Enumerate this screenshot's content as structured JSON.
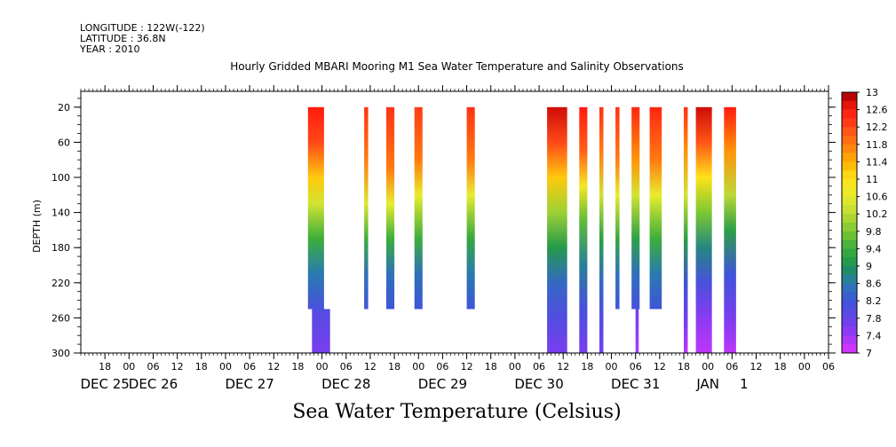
{
  "header": {
    "longitude": "LONGITUDE : 122W(-122)",
    "latitude": "LATITUDE : 36.8N",
    "year": "YEAR : 2010"
  },
  "chart_data": {
    "type": "heatmap",
    "title": "Hourly Gridded MBARI Mooring M1 Sea Water Temperature and Salinity Observations",
    "variable_label": "Sea Water Temperature (Celsius)",
    "ylabel": "DEPTH (m)",
    "ylim": [
      300,
      0
    ],
    "y_ticks": [
      20,
      60,
      100,
      140,
      180,
      220,
      260,
      300
    ],
    "x_start_hour": "DEC 24 12:00",
    "xlim_hours": [
      0,
      186
    ],
    "x_hour_ticks": [
      {
        "hour": 6,
        "label": "18"
      },
      {
        "hour": 12,
        "label": "00"
      },
      {
        "hour": 18,
        "label": "06"
      },
      {
        "hour": 24,
        "label": "12"
      },
      {
        "hour": 30,
        "label": "18"
      },
      {
        "hour": 36,
        "label": "00"
      },
      {
        "hour": 42,
        "label": "06"
      },
      {
        "hour": 48,
        "label": "12"
      },
      {
        "hour": 54,
        "label": "18"
      },
      {
        "hour": 60,
        "label": "00"
      },
      {
        "hour": 66,
        "label": "06"
      },
      {
        "hour": 72,
        "label": "12"
      },
      {
        "hour": 78,
        "label": "18"
      },
      {
        "hour": 84,
        "label": "00"
      },
      {
        "hour": 90,
        "label": "06"
      },
      {
        "hour": 96,
        "label": "12"
      },
      {
        "hour": 102,
        "label": "18"
      },
      {
        "hour": 108,
        "label": "00"
      },
      {
        "hour": 114,
        "label": "06"
      },
      {
        "hour": 120,
        "label": "12"
      },
      {
        "hour": 126,
        "label": "18"
      },
      {
        "hour": 132,
        "label": "00"
      },
      {
        "hour": 138,
        "label": "06"
      },
      {
        "hour": 144,
        "label": "12"
      },
      {
        "hour": 150,
        "label": "18"
      },
      {
        "hour": 156,
        "label": "00"
      },
      {
        "hour": 162,
        "label": "06"
      },
      {
        "hour": 168,
        "label": "12"
      },
      {
        "hour": 174,
        "label": "18"
      },
      {
        "hour": 180,
        "label": "00"
      },
      {
        "hour": 186,
        "label": "06"
      }
    ],
    "x_day_labels": [
      {
        "hour": 6,
        "label": "DEC 25"
      },
      {
        "hour": 18,
        "label": "DEC 26"
      },
      {
        "hour": 42,
        "label": "DEC 27"
      },
      {
        "hour": 66,
        "label": "DEC 28"
      },
      {
        "hour": 90,
        "label": "DEC 29"
      },
      {
        "hour": 114,
        "label": "DEC 30"
      },
      {
        "hour": 138,
        "label": "DEC 31"
      },
      {
        "hour": 156,
        "label": "JAN"
      },
      {
        "hour": 165,
        "label": "1"
      }
    ],
    "colorbar": {
      "min": 7,
      "max": 13,
      "labels": [
        "13",
        "12.6",
        "12.2",
        "11.8",
        "11.4",
        "11",
        "10.6",
        "10.2",
        "9.8",
        "9.4",
        "9",
        "8.6",
        "8.2",
        "7.8",
        "7.4",
        "7"
      ]
    },
    "data_columns": [
      {
        "start_hour": 56.5,
        "end_hour": 60.5,
        "depth_end": 250,
        "profile": [
          [
            20,
            12.6
          ],
          [
            60,
            12.2
          ],
          [
            100,
            11.2
          ],
          [
            130,
            10.4
          ],
          [
            170,
            9.4
          ],
          [
            210,
            8.6
          ],
          [
            250,
            8.1
          ]
        ]
      },
      {
        "start_hour": 57.5,
        "end_hour": 62.0,
        "depth_end": 300,
        "profile": [
          [
            250,
            8.0
          ],
          [
            300,
            7.6
          ]
        ]
      },
      {
        "start_hour": 70.5,
        "end_hour": 71.5,
        "depth_end": 250,
        "profile": [
          [
            20,
            12.4
          ],
          [
            80,
            11.8
          ],
          [
            130,
            10.5
          ],
          [
            170,
            9.4
          ],
          [
            210,
            8.5
          ],
          [
            250,
            8.2
          ]
        ]
      },
      {
        "start_hour": 76.0,
        "end_hour": 78.0,
        "depth_end": 250,
        "profile": [
          [
            20,
            12.4
          ],
          [
            90,
            11.8
          ],
          [
            130,
            10.6
          ],
          [
            170,
            9.4
          ],
          [
            210,
            8.5
          ],
          [
            250,
            8.2
          ]
        ]
      },
      {
        "start_hour": 83.0,
        "end_hour": 85.0,
        "depth_end": 250,
        "profile": [
          [
            20,
            12.3
          ],
          [
            80,
            11.8
          ],
          [
            120,
            10.6
          ],
          [
            170,
            9.4
          ],
          [
            210,
            8.5
          ],
          [
            250,
            8.2
          ]
        ]
      },
      {
        "start_hour": 96.0,
        "end_hour": 98.0,
        "depth_end": 250,
        "profile": [
          [
            20,
            12.4
          ],
          [
            80,
            11.8
          ],
          [
            120,
            10.6
          ],
          [
            170,
            9.3
          ],
          [
            210,
            8.6
          ],
          [
            250,
            8.2
          ]
        ]
      },
      {
        "start_hour": 116.0,
        "end_hour": 121.0,
        "depth_end": 300,
        "profile": [
          [
            20,
            12.8
          ],
          [
            60,
            12.2
          ],
          [
            100,
            11.2
          ],
          [
            140,
            10.0
          ],
          [
            180,
            9.1
          ],
          [
            220,
            8.4
          ],
          [
            260,
            8.0
          ],
          [
            300,
            7.6
          ]
        ]
      },
      {
        "start_hour": 124.0,
        "end_hour": 126.0,
        "depth_end": 300,
        "profile": [
          [
            20,
            12.6
          ],
          [
            70,
            12.0
          ],
          [
            110,
            10.8
          ],
          [
            150,
            9.6
          ],
          [
            200,
            8.7
          ],
          [
            250,
            8.1
          ],
          [
            300,
            7.6
          ]
        ]
      },
      {
        "start_hour": 129.0,
        "end_hour": 130.0,
        "depth_end": 300,
        "profile": [
          [
            20,
            12.4
          ],
          [
            70,
            11.8
          ],
          [
            120,
            10.4
          ],
          [
            170,
            9.2
          ],
          [
            220,
            8.4
          ],
          [
            260,
            8.0
          ],
          [
            300,
            7.7
          ]
        ]
      },
      {
        "start_hour": 133.0,
        "end_hour": 134.0,
        "depth_end": 250,
        "profile": [
          [
            20,
            12.4
          ],
          [
            80,
            11.8
          ],
          [
            120,
            10.6
          ],
          [
            170,
            9.3
          ],
          [
            210,
            8.5
          ],
          [
            250,
            8.2
          ]
        ]
      },
      {
        "start_hour": 137.0,
        "end_hour": 139.0,
        "depth_end": 250,
        "profile": [
          [
            20,
            12.5
          ],
          [
            80,
            11.6
          ],
          [
            120,
            10.4
          ],
          [
            170,
            9.2
          ],
          [
            210,
            8.5
          ],
          [
            250,
            8.1
          ]
        ]
      },
      {
        "start_hour": 138.0,
        "end_hour": 138.8,
        "depth_end": 300,
        "profile": [
          [
            250,
            7.7
          ],
          [
            300,
            7.3
          ]
        ]
      },
      {
        "start_hour": 141.5,
        "end_hour": 144.5,
        "depth_end": 250,
        "profile": [
          [
            20,
            12.5
          ],
          [
            80,
            11.8
          ],
          [
            120,
            10.6
          ],
          [
            170,
            9.4
          ],
          [
            210,
            8.6
          ],
          [
            250,
            8.2
          ]
        ]
      },
      {
        "start_hour": 150.0,
        "end_hour": 151.0,
        "depth_end": 300,
        "profile": [
          [
            20,
            12.4
          ],
          [
            70,
            11.6
          ],
          [
            120,
            10.4
          ],
          [
            170,
            9.2
          ],
          [
            220,
            8.2
          ],
          [
            260,
            7.7
          ],
          [
            300,
            7.2
          ]
        ]
      },
      {
        "start_hour": 153.0,
        "end_hour": 157.0,
        "depth_end": 300,
        "profile": [
          [
            20,
            12.8
          ],
          [
            60,
            12.1
          ],
          [
            100,
            11.0
          ],
          [
            140,
            9.8
          ],
          [
            180,
            8.8
          ],
          [
            220,
            8.1
          ],
          [
            260,
            7.5
          ],
          [
            300,
            7.2
          ]
        ]
      },
      {
        "start_hour": 160.0,
        "end_hour": 163.0,
        "depth_end": 300,
        "profile": [
          [
            20,
            12.6
          ],
          [
            70,
            11.6
          ],
          [
            120,
            10.2
          ],
          [
            160,
            9.2
          ],
          [
            210,
            8.2
          ],
          [
            260,
            7.6
          ],
          [
            300,
            7.2
          ]
        ]
      }
    ],
    "grid": false
  }
}
